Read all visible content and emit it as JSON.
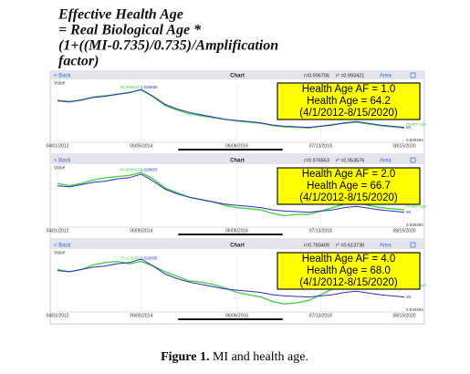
{
  "header": {
    "lines": [
      "Effective Health Age",
      "= Real Biological Age *",
      "(1+((MI-0.735)/0.735)/Amplification",
      "factor)"
    ]
  },
  "panels": [
    {
      "back": "< Back",
      "title": "Chart",
      "r": "r=0.996706",
      "r2": "r² =0.993421",
      "area": "Area"
    },
    {
      "back": "< Back",
      "title": "Chart",
      "r": "r=0.976563",
      "r2": "r² =0.953676",
      "area": "Area"
    },
    {
      "back": "< Back",
      "title": "Chart",
      "r": "r=0.783409",
      "r2": "r² =0.613730",
      "area": "Area"
    }
  ],
  "chart_data": [
    {
      "type": "line",
      "y_label": "Value",
      "ylim": [
        0,
        100
      ],
      "categories": [
        "04/01/2012",
        null,
        null,
        null,
        null,
        null,
        null,
        "06/05/2014",
        null,
        null,
        null,
        null,
        null,
        null,
        null,
        "06/06/2016",
        null,
        null,
        null,
        null,
        null,
        null,
        "07/13/2018",
        null,
        null,
        null,
        null,
        null,
        null,
        "08/15/2020"
      ],
      "series": [
        {
          "name": "Health Age",
          "color": "#4cd04c",
          "values": [
            73,
            71,
            73,
            79,
            81,
            83,
            87,
            91,
            79,
            64,
            56,
            50,
            46,
            43,
            40,
            37,
            35,
            33,
            29,
            27,
            26,
            25,
            28,
            31,
            33,
            35,
            32,
            29,
            27,
            25
          ]
        },
        {
          "name": "MI",
          "color": "#2f2fc4",
          "values": [
            72,
            70,
            74,
            78,
            80,
            84,
            86,
            92,
            80,
            66,
            58,
            52,
            48,
            44,
            40,
            38,
            36,
            34,
            30,
            28,
            27,
            26,
            28,
            30,
            34,
            36,
            33,
            30,
            28,
            26
          ]
        }
      ],
      "box": [
        "Health Age AF = 1.0",
        "Health Age = 64.2",
        "(4/1/2012-8/15/2020)"
      ],
      "peak_labels": [
        "80.968829",
        "1.028055"
      ],
      "end_label": "0.930494"
    },
    {
      "type": "line",
      "y_label": "Value",
      "ylim": [
        0,
        100
      ],
      "categories": [
        "04/01/2012",
        null,
        null,
        null,
        null,
        null,
        null,
        "06/05/2014",
        null,
        null,
        null,
        null,
        null,
        null,
        null,
        "06/06/2016",
        null,
        null,
        null,
        null,
        null,
        null,
        "07/13/2018",
        null,
        null,
        null,
        null,
        null,
        null,
        "08/15/2020"
      ],
      "series": [
        {
          "name": "Health Age",
          "color": "#4cd04c",
          "values": [
            76,
            72,
            76,
            82,
            86,
            88,
            90,
            95,
            84,
            68,
            60,
            52,
            48,
            44,
            38,
            34,
            32,
            30,
            24,
            20,
            22,
            22,
            28,
            34,
            40,
            42,
            38,
            34,
            32,
            30
          ]
        },
        {
          "name": "MI",
          "color": "#2f2fc4",
          "values": [
            72,
            70,
            74,
            78,
            80,
            84,
            86,
            92,
            80,
            66,
            58,
            52,
            48,
            44,
            40,
            38,
            36,
            34,
            30,
            28,
            27,
            26,
            28,
            30,
            34,
            36,
            33,
            30,
            28,
            26
          ]
        }
      ],
      "box": [
        "Health Age AF = 2.0",
        "Health Age = 66.7",
        "(4/1/2012-8/15/2020)"
      ],
      "peak_labels": [
        "80.968829",
        "1.028055"
      ],
      "end_label": "0.930494"
    },
    {
      "type": "line",
      "y_label": "Value",
      "ylim": [
        0,
        100
      ],
      "categories": [
        "04/01/2012",
        null,
        null,
        null,
        null,
        null,
        null,
        "06/05/2014",
        null,
        null,
        null,
        null,
        null,
        null,
        null,
        "06/06/2016",
        null,
        null,
        null,
        null,
        null,
        null,
        "07/13/2018",
        null,
        null,
        null,
        null,
        null,
        null,
        "08/15/2020"
      ],
      "series": [
        {
          "name": "Health Age",
          "color": "#4cd04c",
          "values": [
            74,
            70,
            74,
            82,
            86,
            88,
            84,
            88,
            80,
            70,
            62,
            54,
            52,
            48,
            42,
            34,
            30,
            26,
            18,
            14,
            16,
            20,
            30,
            40,
            46,
            50,
            48,
            44,
            42,
            40
          ]
        },
        {
          "name": "MI",
          "color": "#2f2fc4",
          "values": [
            72,
            70,
            74,
            78,
            80,
            84,
            86,
            92,
            80,
            66,
            58,
            52,
            48,
            44,
            40,
            38,
            36,
            34,
            30,
            28,
            27,
            26,
            28,
            30,
            34,
            36,
            33,
            30,
            28,
            26
          ]
        }
      ],
      "box": [
        "Health Age AF = 4.0",
        "Health Age = 68.0",
        "(4/1/2012-8/15/2020)"
      ],
      "peak_labels": [
        "73.223939",
        "1.028055"
      ],
      "end_label": "0.930494"
    }
  ],
  "caption": {
    "label": "Figure 1.",
    "text": "MI and health age."
  }
}
